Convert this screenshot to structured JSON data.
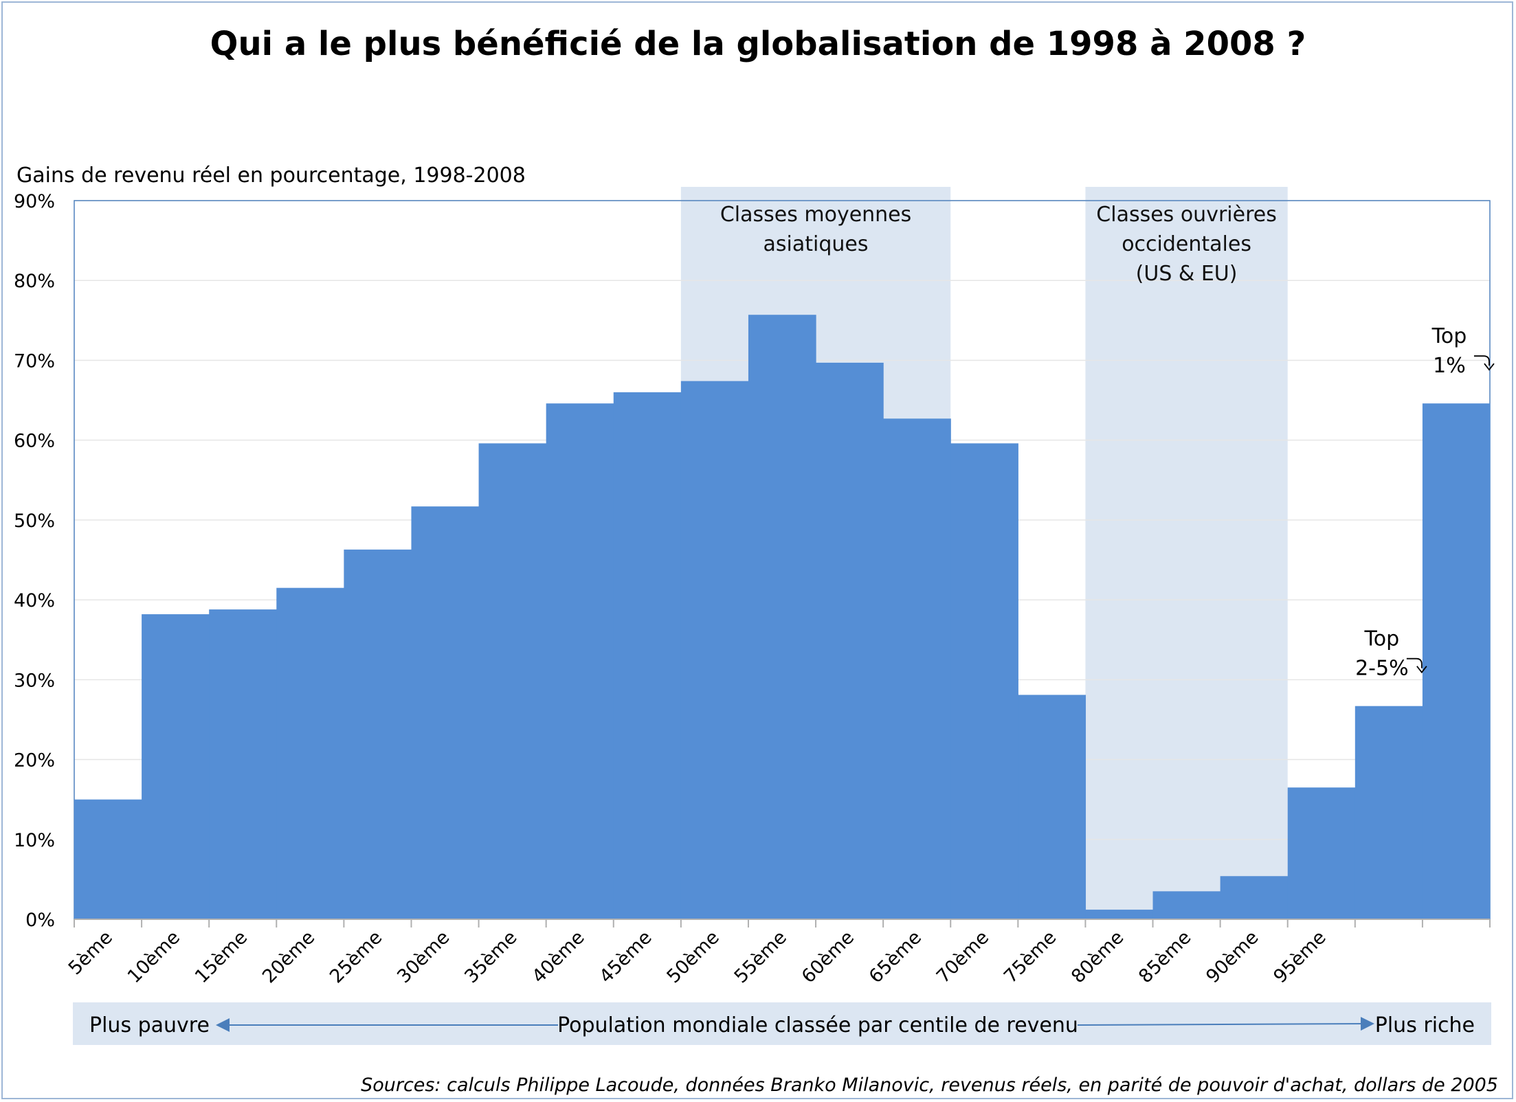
{
  "chart_data": {
    "type": "bar",
    "title": "Qui a le plus bénéficié de la globalisation de 1998 à 2008 ?",
    "ylabel": "Gains de revenu réel en pourcentage, 1998-2008",
    "xlabel": "Population mondiale classée par centile de revenu",
    "ylim": [
      0,
      90
    ],
    "yticks": [
      "0%",
      "10%",
      "20%",
      "30%",
      "40%",
      "50%",
      "60%",
      "70%",
      "80%",
      "90%"
    ],
    "categories": [
      "5ème",
      "10ème",
      "15ème",
      "20ème",
      "25ème",
      "30ème",
      "35ème",
      "40ème",
      "45ème",
      "50ème",
      "55ème",
      "60ème",
      "65ème",
      "70ème",
      "75ème",
      "80ème",
      "85ème",
      "90ème",
      "95ème",
      "",
      ""
    ],
    "values": [
      15,
      38.2,
      38.8,
      41.5,
      46.3,
      51.7,
      59.6,
      64.6,
      66,
      67.4,
      75.7,
      69.7,
      62.7,
      59.6,
      28.1,
      1.2,
      3.5,
      5.4,
      16.5,
      26.7,
      64.6
    ],
    "bar_color": "#558ed5",
    "band_color": "#dce6f2",
    "grid": true,
    "bands": [
      {
        "label_lines": [
          "Classes moyennes",
          "asiatiques"
        ],
        "from_index": 9,
        "to_index": 13
      },
      {
        "label_lines": [
          "Classes ouvrières",
          "occidentales",
          "(US & EU)"
        ],
        "from_index": 15,
        "to_index": 18
      }
    ],
    "annotations": [
      {
        "lines": [
          "Top",
          "2-5%"
        ],
        "index": 19
      },
      {
        "lines": [
          "Top",
          "1%"
        ],
        "index": 20
      }
    ],
    "bottom": {
      "left": "Plus pauvre",
      "center": "Population mondiale classée par centile de revenu",
      "right": "Plus riche"
    },
    "source": "Sources: calculs Philippe Lacoude, données Branko Milanovic, revenus réels, en parité de pouvoir d'achat, dollars de 2005"
  }
}
